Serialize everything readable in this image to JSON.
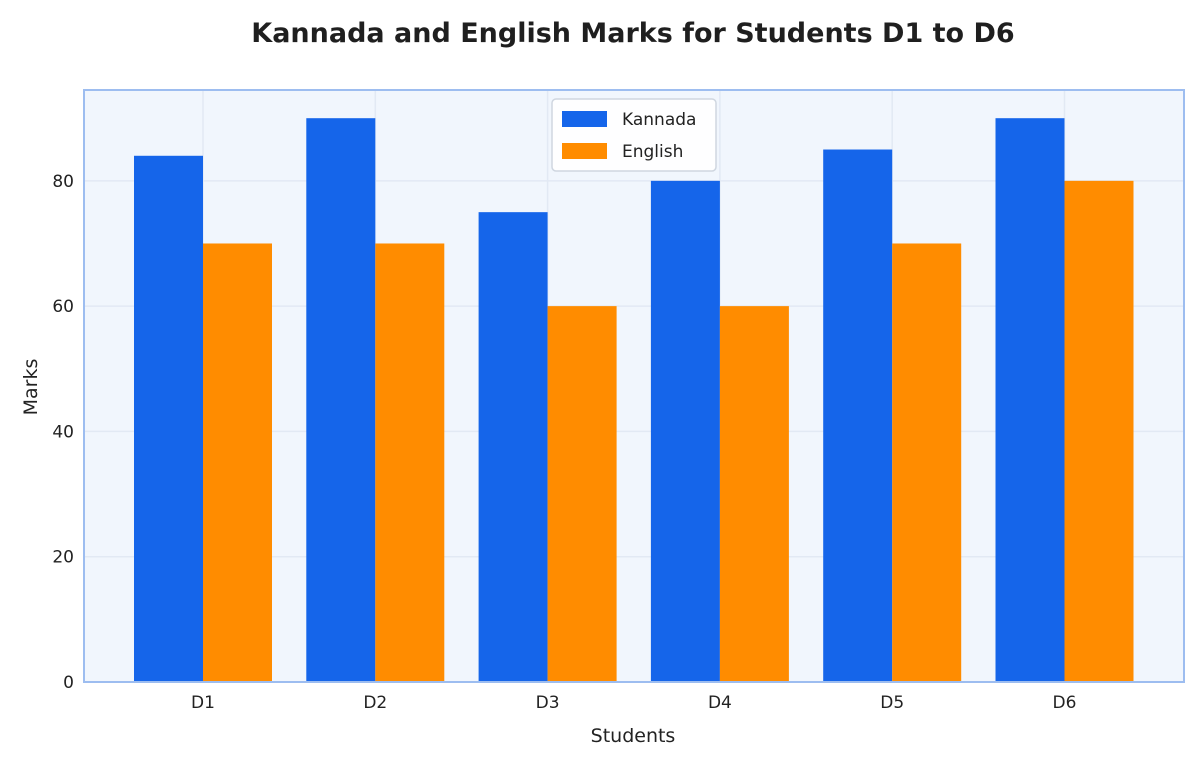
{
  "chart_data": {
    "type": "bar",
    "title": "Kannada and English Marks for Students D1 to D6",
    "xlabel": "Students",
    "ylabel": "Marks",
    "categories": [
      "D1",
      "D2",
      "D3",
      "D4",
      "D5",
      "D6"
    ],
    "series": [
      {
        "name": "Kannada",
        "color": "#1565ea",
        "values": [
          84,
          90,
          75,
          80,
          85,
          90
        ]
      },
      {
        "name": "English",
        "color": "#ff8c00",
        "values": [
          70,
          70,
          60,
          60,
          70,
          80
        ]
      }
    ],
    "ylim": [
      0,
      94.5
    ],
    "yticks": [
      "0",
      "20",
      "40",
      "60",
      "80"
    ],
    "grid": true,
    "legend": "top-center",
    "colors": {
      "plot_background": "#f1f6fd",
      "plot_border": "#9dbdf0",
      "grid": "#e2e9f4"
    }
  }
}
